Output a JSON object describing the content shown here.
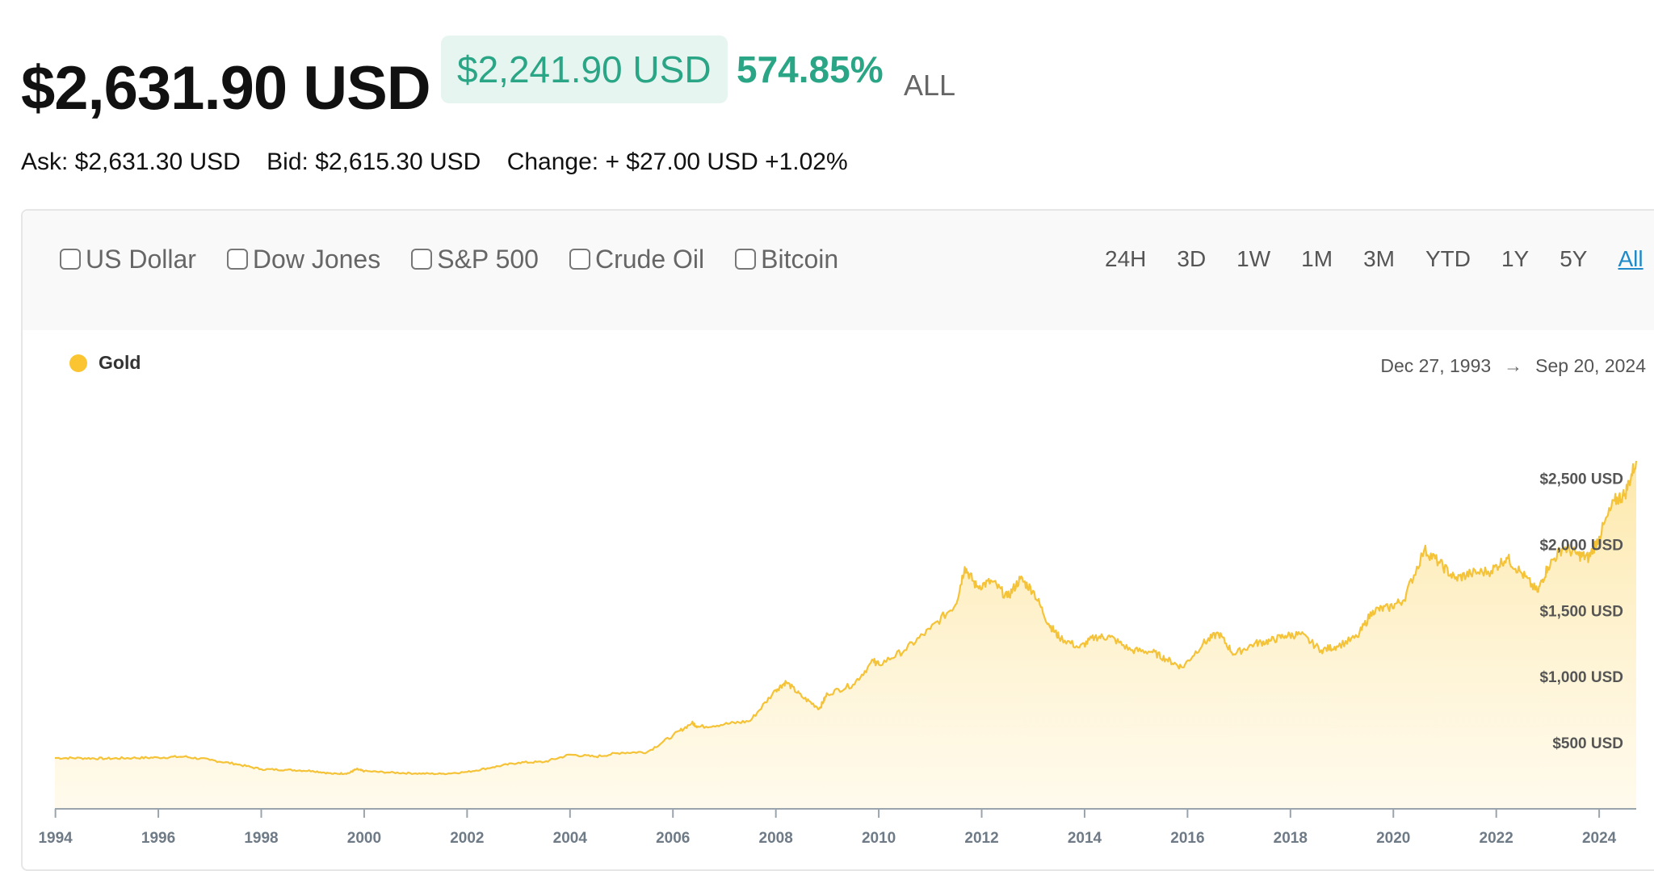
{
  "header": {
    "price": "$2,631.90 USD",
    "change_amount": "$2,241.90 USD",
    "change_percent": "574.85%",
    "range_label": "ALL"
  },
  "quote": {
    "ask": "Ask: $2,631.30 USD",
    "bid": "Bid: $2,615.30 USD",
    "change": "Change: + $27.00 USD +1.02%"
  },
  "compare_options": [
    "US Dollar",
    "Dow Jones",
    "S&P 500",
    "Crude Oil",
    "Bitcoin"
  ],
  "range_tabs": [
    "24H",
    "3D",
    "1W",
    "1M",
    "3M",
    "YTD",
    "1Y",
    "5Y",
    "All"
  ],
  "active_range": "All",
  "colors": {
    "accent_green": "#2aa585",
    "badge_bg": "#e7f5f1",
    "gold_line": "#f5c338",
    "gold_fill": "#fde7a6",
    "active_tab": "#1f8ac9"
  },
  "legend": {
    "label": "Gold"
  },
  "date_range": {
    "start": "Dec 27, 1993",
    "end": "Sep 20, 2024",
    "arrow": "→"
  },
  "chart_data": {
    "type": "area",
    "series": [
      {
        "name": "Gold",
        "x": [
          1993.99,
          1994.5,
          1995.0,
          1995.5,
          1996.0,
          1996.5,
          1997.0,
          1997.5,
          1998.0,
          1998.5,
          1999.0,
          1999.4,
          1999.7,
          1999.85,
          2000.0,
          2000.5,
          2001.0,
          2001.5,
          2002.0,
          2002.5,
          2003.0,
          2003.5,
          2004.0,
          2004.5,
          2005.0,
          2005.5,
          2006.0,
          2006.37,
          2006.5,
          2007.0,
          2007.5,
          2008.0,
          2008.2,
          2008.5,
          2008.85,
          2009.0,
          2009.5,
          2009.9,
          2010.0,
          2010.5,
          2011.0,
          2011.5,
          2011.67,
          2011.9,
          2012.2,
          2012.5,
          2012.75,
          2013.0,
          2013.3,
          2013.5,
          2013.9,
          2014.2,
          2014.5,
          2014.9,
          2015.3,
          2015.6,
          2015.9,
          2016.3,
          2016.6,
          2016.9,
          2017.3,
          2017.6,
          2017.9,
          2018.2,
          2018.6,
          2018.9,
          2019.3,
          2019.6,
          2019.9,
          2020.2,
          2020.6,
          2020.9,
          2021.2,
          2021.5,
          2021.9,
          2022.2,
          2022.5,
          2022.8,
          2023.0,
          2023.3,
          2023.6,
          2023.8,
          2024.0,
          2024.3,
          2024.5,
          2024.72
        ],
        "y": [
          385,
          384,
          380,
          385,
          388,
          395,
          370,
          340,
          300,
          295,
          287,
          265,
          270,
          300,
          285,
          275,
          268,
          265,
          279,
          315,
          350,
          355,
          410,
          395,
          425,
          430,
          555,
          650,
          620,
          640,
          665,
          900,
          960,
          850,
          760,
          870,
          940,
          1120,
          1090,
          1200,
          1360,
          1550,
          1830,
          1680,
          1720,
          1600,
          1740,
          1650,
          1400,
          1300,
          1220,
          1300,
          1300,
          1200,
          1190,
          1130,
          1070,
          1250,
          1330,
          1170,
          1250,
          1270,
          1310,
          1320,
          1200,
          1230,
          1300,
          1500,
          1520,
          1580,
          1960,
          1860,
          1740,
          1780,
          1800,
          1900,
          1780,
          1640,
          1830,
          1980,
          1920,
          1900,
          2060,
          2330,
          2380,
          2631.9
        ]
      }
    ],
    "x_ticks": [
      "1994",
      "1996",
      "1998",
      "2000",
      "2002",
      "2004",
      "2006",
      "2008",
      "2010",
      "2012",
      "2014",
      "2016",
      "2018",
      "2020",
      "2022",
      "2024"
    ],
    "y_ticks": [
      "$500 USD",
      "$1,000 USD",
      "$1,500 USD",
      "$2,000 USD",
      "$2,500 USD"
    ],
    "y_tick_values": [
      500,
      1000,
      1500,
      2000,
      2500
    ],
    "x_tick_values": [
      1994,
      1996,
      1998,
      2000,
      2002,
      2004,
      2006,
      2008,
      2010,
      2012,
      2014,
      2016,
      2018,
      2020,
      2022,
      2024
    ],
    "xlim": [
      1993.99,
      2024.72
    ],
    "ylim": [
      0,
      2631.9
    ],
    "grid": false,
    "legend_position": "top-left"
  }
}
